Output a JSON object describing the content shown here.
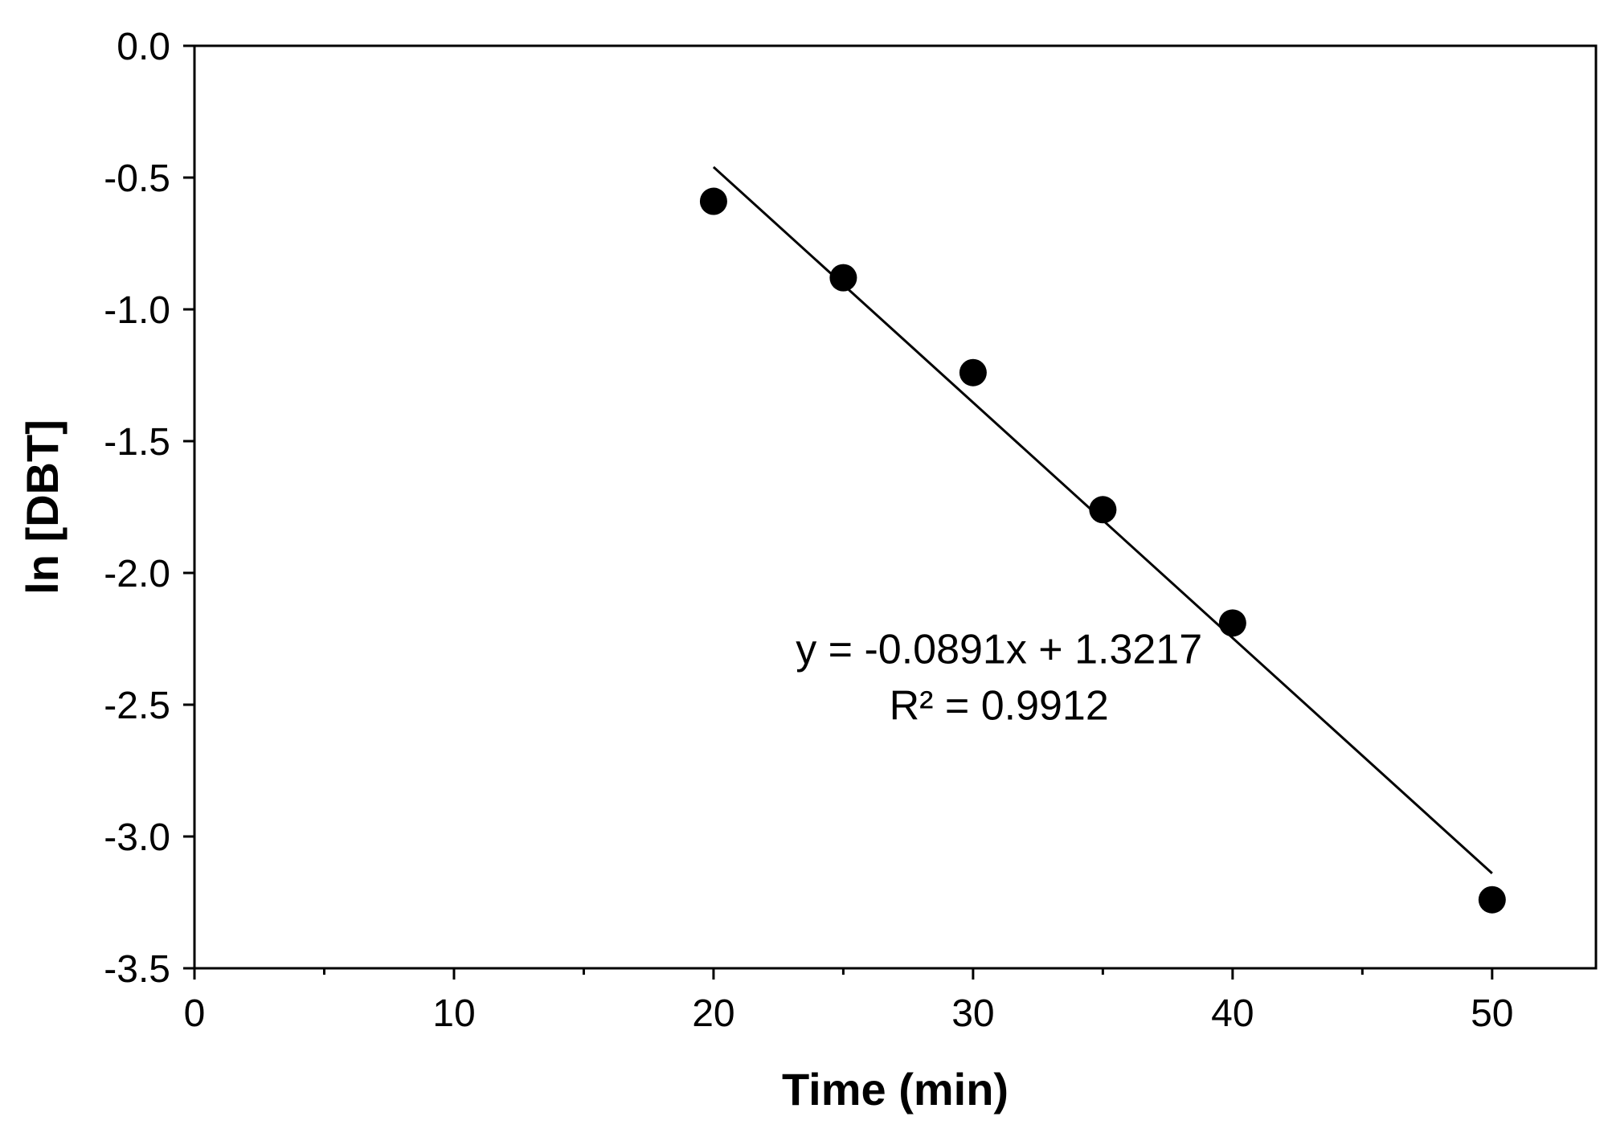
{
  "chart_data": {
    "type": "scatter",
    "xlabel": "Time (min)",
    "ylabel": "ln [DBT]",
    "xlim": [
      0,
      54
    ],
    "ylim": [
      -3.5,
      0.0
    ],
    "x_ticks": [
      0,
      10,
      20,
      30,
      40,
      50
    ],
    "x_tick_labels": [
      "0",
      "10",
      "20",
      "30",
      "40",
      "50"
    ],
    "x_minor_ticks": [
      5,
      15,
      25,
      35,
      45
    ],
    "y_ticks": [
      0.0,
      -0.5,
      -1.0,
      -1.5,
      -2.0,
      -2.5,
      -3.0,
      -3.5
    ],
    "y_tick_labels": [
      "0.0",
      "-0.5",
      "-1.0",
      "-1.5",
      "-2.0",
      "-2.5",
      "-3.0",
      "-3.5"
    ],
    "grid": false,
    "series": [
      {
        "type": "scatter",
        "x": [
          20,
          25,
          30,
          35,
          40,
          50
        ],
        "y": [
          -0.59,
          -0.88,
          -1.24,
          -1.76,
          -2.19,
          -3.24
        ],
        "color": "#000000"
      }
    ],
    "trendline": {
      "x_start": 20,
      "x_end": 50,
      "y_start": -0.46,
      "y_end": -3.14,
      "color": "#000000"
    },
    "annotations": {
      "equation": "y = -0.0891x + 1.3217",
      "r_squared": "R² = 0.9912",
      "anchor": {
        "x": 31,
        "y": -2.45
      }
    }
  }
}
